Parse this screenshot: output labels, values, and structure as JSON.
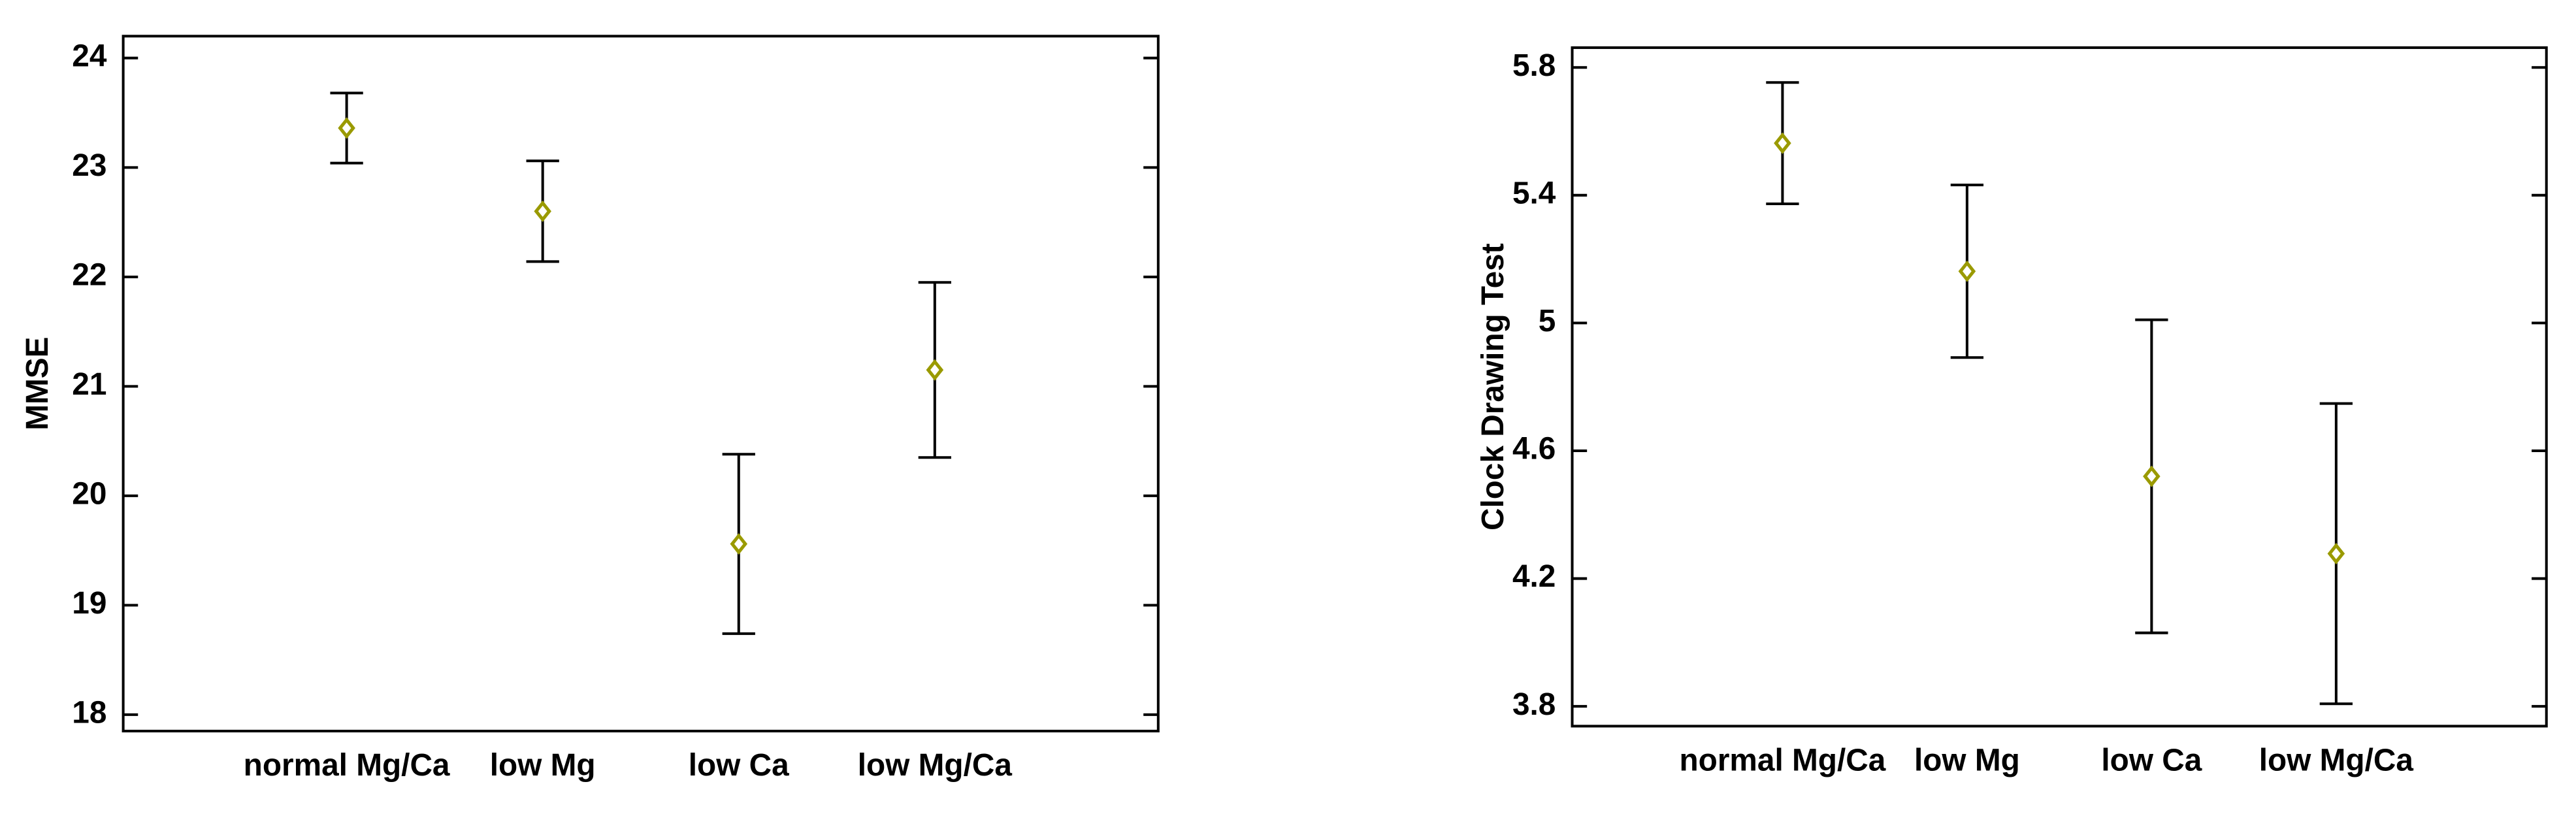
{
  "chart_data": [
    {
      "type": "errorbar",
      "ylabel": "MMSE",
      "categories": [
        "normal Mg/Ca",
        "low Mg",
        "low Ca",
        "low Mg/Ca"
      ],
      "values": [
        23.36,
        22.6,
        19.56,
        21.15
      ],
      "errors": [
        0.32,
        0.46,
        0.82,
        0.8
      ],
      "color": "#9a9a00",
      "ylim": [
        17.85,
        24.2
      ],
      "yticks": [
        18,
        19,
        20,
        21,
        22,
        23,
        24
      ]
    },
    {
      "type": "errorbar",
      "ylabel": "Clock Drawing Test",
      "categories": [
        "normal Mg/Ca",
        "low Mg",
        "low Ca",
        "low Mg/Ca"
      ],
      "values": [
        5.563,
        5.162,
        4.52,
        4.278
      ],
      "errors": [
        0.19,
        0.27,
        0.49,
        0.47
      ],
      "color": "#9a9a00",
      "ylim": [
        3.738,
        5.862
      ],
      "yticks": [
        3.8,
        4.2,
        4.6,
        5,
        5.4,
        5.8
      ]
    }
  ]
}
